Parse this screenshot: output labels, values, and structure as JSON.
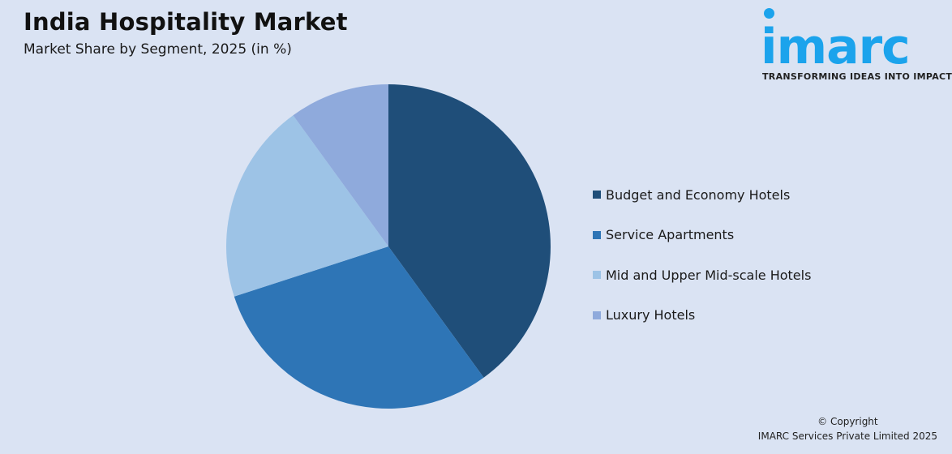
{
  "header": {
    "title": "India Hospitality Market",
    "subtitle": "Market Share by Segment, 2025 (in %)"
  },
  "logo": {
    "word": "imarc",
    "tagline": "TRANSFORMING IDEAS INTO IMPACT",
    "color": "#1ba3ec"
  },
  "footer": {
    "line1": "© Copyright",
    "line2": "IMARC Services Private Limited 2025"
  },
  "chart_data": {
    "type": "pie",
    "title": "India Hospitality Market",
    "subtitle": "Market Share by Segment, 2025 (in %)",
    "categories": [
      "Budget and Economy Hotels",
      "Service Apartments",
      "Mid and Upper Mid-scale Hotels",
      "Luxury Hotels"
    ],
    "values": [
      40,
      30,
      20,
      10
    ],
    "colors": [
      "#1f4e79",
      "#2e75b6",
      "#9dc3e6",
      "#8faadc"
    ],
    "start_angle_deg": 0,
    "direction": "clockwise",
    "legend_position": "right",
    "data_labels": false
  }
}
